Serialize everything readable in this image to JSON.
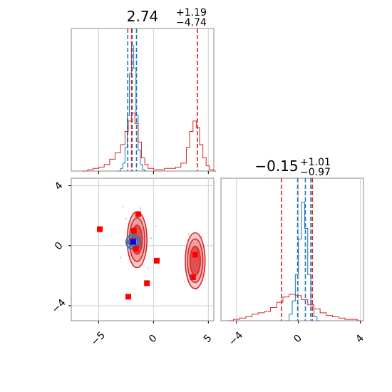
{
  "chart_data": [
    {
      "panel": "marginal-x",
      "type": "histogram",
      "title_value": "2.74",
      "title_plus": "+1.19",
      "title_minus": "−4.74",
      "xlim": [
        -7.5,
        5.5
      ],
      "grid": true,
      "series": [
        {
          "color": "#1f77b4",
          "bins": [
            [
              -3.2,
              0.0
            ],
            [
              -3.0,
              0.02
            ],
            [
              -2.8,
              0.06
            ],
            [
              -2.6,
              0.18
            ],
            [
              -2.4,
              0.42
            ],
            [
              -2.2,
              0.74
            ],
            [
              -2.0,
              0.95
            ],
            [
              -1.8,
              0.78
            ],
            [
              -1.6,
              0.42
            ],
            [
              -1.4,
              0.16
            ],
            [
              -1.2,
              0.05
            ],
            [
              -1.0,
              0.01
            ],
            [
              -0.8,
              0.0
            ]
          ],
          "quantile_lines": [
            -2.35,
            -1.95,
            -1.55
          ]
        },
        {
          "color": "#d62728",
          "bins": [
            [
              -6.5,
              0.0
            ],
            [
              -6.0,
              0.01
            ],
            [
              -5.5,
              0.02
            ],
            [
              -5.0,
              0.03
            ],
            [
              -4.5,
              0.05
            ],
            [
              -4.0,
              0.09
            ],
            [
              -3.5,
              0.14
            ],
            [
              -3.0,
              0.2
            ],
            [
              -2.6,
              0.3
            ],
            [
              -2.3,
              0.38
            ],
            [
              -2.0,
              0.44
            ],
            [
              -1.7,
              0.36
            ],
            [
              -1.4,
              0.22
            ],
            [
              -1.1,
              0.1
            ],
            [
              -0.8,
              0.05
            ],
            [
              -0.5,
              0.02
            ],
            [
              0.0,
              0.01
            ],
            [
              0.5,
              0.01
            ],
            [
              1.0,
              0.02
            ],
            [
              1.5,
              0.02
            ],
            [
              2.0,
              0.03
            ],
            [
              2.5,
              0.06
            ],
            [
              3.0,
              0.18
            ],
            [
              3.3,
              0.3
            ],
            [
              3.6,
              0.38
            ],
            [
              3.9,
              0.33
            ],
            [
              4.2,
              0.2
            ],
            [
              4.5,
              0.1
            ],
            [
              4.8,
              0.04
            ],
            [
              5.1,
              0.01
            ],
            [
              5.5,
              0.0
            ]
          ],
          "quantile_lines": [
            -2.0,
            4.0
          ]
        }
      ]
    },
    {
      "panel": "joint",
      "type": "contour",
      "xlim": [
        -7.5,
        5.5
      ],
      "ylim": [
        -5,
        4.5
      ],
      "x_ticks": [
        "−5",
        "0",
        "5"
      ],
      "y_ticks": [
        "4",
        "0",
        "−4"
      ],
      "grid": true,
      "red_markers": [
        [
          -4.9,
          1.1
        ],
        [
          -1.4,
          2.1
        ],
        [
          -1.8,
          1.0
        ],
        [
          -1.6,
          -0.2
        ],
        [
          -1.9,
          0.3
        ],
        [
          0.3,
          -1.0
        ],
        [
          -0.6,
          -2.5
        ],
        [
          -2.3,
          -3.4
        ],
        [
          3.8,
          -0.6
        ],
        [
          3.6,
          -2.1
        ]
      ],
      "blue_marker": [
        -1.85,
        0.25
      ],
      "red_modes": [
        {
          "center": [
            -1.5,
            0.4
          ],
          "sx": 0.9,
          "sy": 1.2
        },
        {
          "center": [
            3.8,
            -1.0
          ],
          "sx": 0.9,
          "sy": 1.2
        }
      ],
      "blue_mode": {
        "center": [
          -1.85,
          0.25
        ],
        "sx": 0.4,
        "sy": 0.3
      },
      "scatter_points": [
        [
          -2.5,
          1.8
        ],
        [
          -1.2,
          2.5
        ],
        [
          -3.0,
          -0.8
        ],
        [
          0.2,
          1.3
        ],
        [
          -0.5,
          -1.5
        ],
        [
          4.4,
          0.6
        ],
        [
          2.8,
          -2.4
        ],
        [
          4.7,
          -2.2
        ],
        [
          3.2,
          0.8
        ],
        [
          -2.8,
          2.6
        ],
        [
          -0.2,
          0.5
        ],
        [
          4.0,
          -2.9
        ]
      ]
    },
    {
      "panel": "marginal-y",
      "type": "histogram",
      "title_value": "−0.15",
      "title_plus": "+1.01",
      "title_minus": "−0.97",
      "xlim": [
        -5,
        4.2
      ],
      "x_ticks": [
        "−4",
        "0",
        "4"
      ],
      "grid": true,
      "series": [
        {
          "color": "#1f77b4",
          "bins": [
            [
              -0.8,
              0.0
            ],
            [
              -0.6,
              0.05
            ],
            [
              -0.4,
              0.15
            ],
            [
              -0.2,
              0.35
            ],
            [
              0.0,
              0.62
            ],
            [
              0.2,
              0.9
            ],
            [
              0.4,
              0.7
            ],
            [
              0.6,
              0.35
            ],
            [
              0.8,
              0.12
            ],
            [
              1.0,
              0.03
            ],
            [
              1.2,
              0.0
            ]
          ],
          "quantile_lines": [
            -0.05,
            0.45,
            0.8
          ]
        },
        {
          "color": "#d62728",
          "bins": [
            [
              -4.6,
              0.0
            ],
            [
              -4.2,
              0.01
            ],
            [
              -3.8,
              0.02
            ],
            [
              -3.4,
              0.03
            ],
            [
              -3.0,
              0.05
            ],
            [
              -2.6,
              0.06
            ],
            [
              -2.2,
              0.07
            ],
            [
              -1.8,
              0.1
            ],
            [
              -1.4,
              0.14
            ],
            [
              -1.0,
              0.18
            ],
            [
              -0.6,
              0.2
            ],
            [
              -0.2,
              0.19
            ],
            [
              0.2,
              0.16
            ],
            [
              0.6,
              0.12
            ],
            [
              1.0,
              0.09
            ],
            [
              1.4,
              0.06
            ],
            [
              1.8,
              0.04
            ],
            [
              2.2,
              0.03
            ],
            [
              2.6,
              0.02
            ],
            [
              3.0,
              0.01
            ],
            [
              3.4,
              0.01
            ],
            [
              3.8,
              0.0
            ]
          ],
          "quantile_lines": [
            -1.1,
            0.9
          ]
        }
      ]
    }
  ]
}
